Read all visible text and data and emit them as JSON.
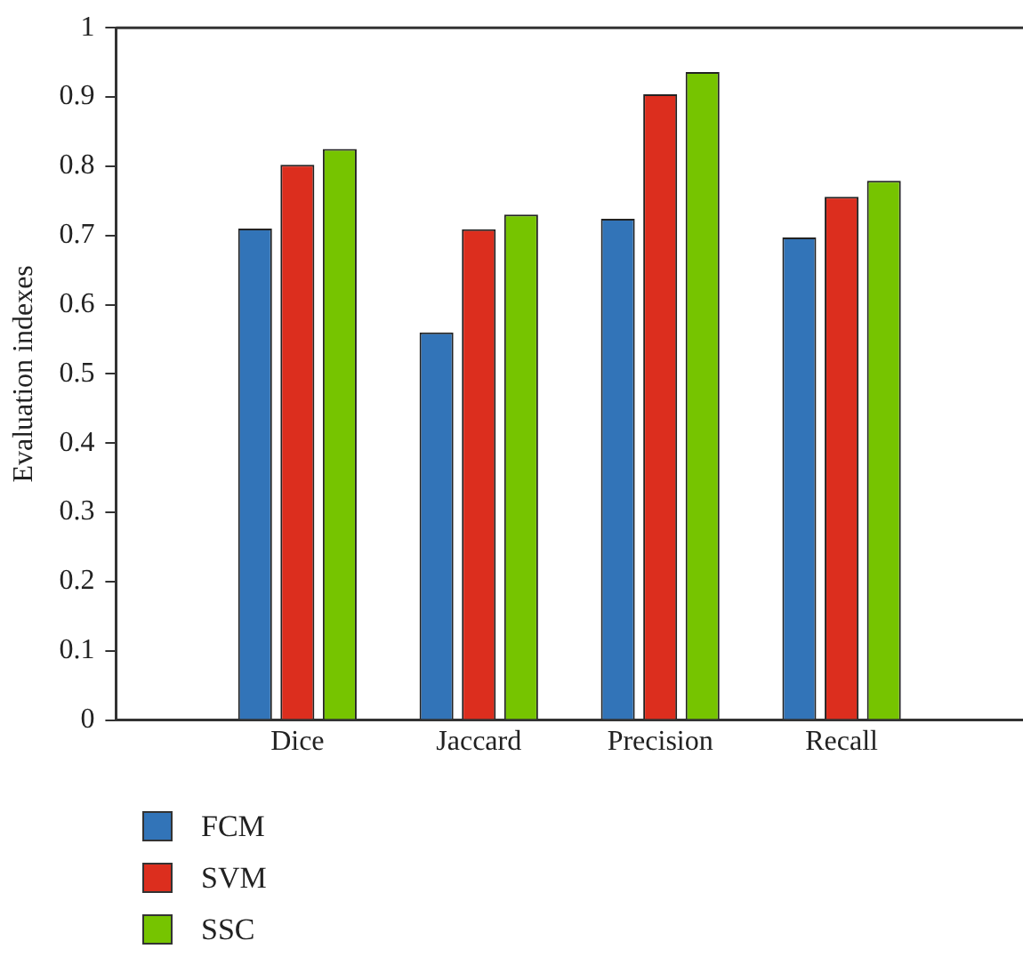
{
  "chart_data": {
    "type": "bar",
    "ylabel": "Evaluation indexes",
    "categories": [
      "Dice",
      "Jaccard",
      "Precision",
      "Recall"
    ],
    "series": [
      {
        "name": "FCM",
        "color": "#3274b8",
        "values": [
          0.71,
          0.56,
          0.724,
          0.697
        ]
      },
      {
        "name": "SVM",
        "color": "#dc2e1e",
        "values": [
          0.802,
          0.709,
          0.904,
          0.756
        ]
      },
      {
        "name": "SSC",
        "color": "#76c400",
        "values": [
          0.825,
          0.73,
          0.936,
          0.779
        ]
      }
    ],
    "ylim": [
      0,
      1
    ],
    "yticks": [
      0,
      0.1,
      0.2,
      0.3,
      0.4,
      0.5,
      0.6,
      0.7,
      0.8,
      0.9,
      1
    ],
    "grid": false,
    "legend": "bottom left"
  }
}
